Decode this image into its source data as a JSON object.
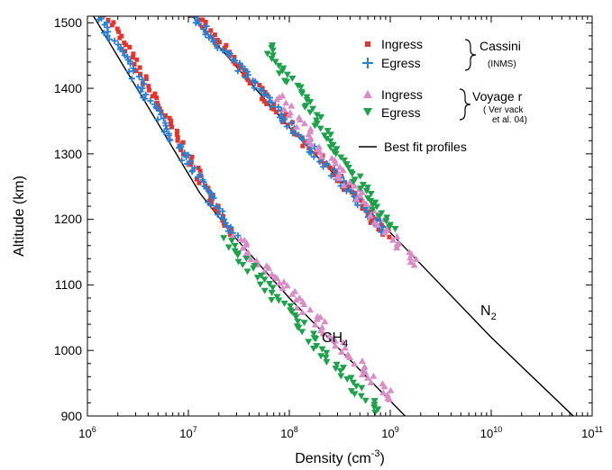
{
  "chart_data": {
    "type": "scatter",
    "xlabel": "Density (cm",
    "xlabel_exp": "-3",
    "xlabel_end": ")",
    "ylabel": "Altitude (km)",
    "xscale": "log",
    "xlim": [
      1000000,
      100000000000
    ],
    "ylim": [
      900,
      1510
    ],
    "x_tick_labels": [
      {
        "value": 1000000,
        "base": "10",
        "exp": "6"
      },
      {
        "value": 10000000,
        "base": "10",
        "exp": "7"
      },
      {
        "value": 100000000,
        "base": "10",
        "exp": "8"
      },
      {
        "value": 1000000000,
        "base": "10",
        "exp": "9"
      },
      {
        "value": 10000000000,
        "base": "10",
        "exp": "10"
      },
      {
        "value": 100000000000,
        "base": "10",
        "exp": "11"
      }
    ],
    "y_ticks": [
      900,
      1000,
      1100,
      1200,
      1300,
      1400,
      1500
    ],
    "grid": false,
    "legend_position": "top-right",
    "legend": {
      "cassini_ingress": "Ingress",
      "cassini_egress": "Egress",
      "cassini_group": "Cassini",
      "cassini_sub": "(INMS)",
      "voyager_ingress": "Ingress",
      "voyager_egress": "Egress",
      "voyager_group": "Voyage r",
      "voyager_sub1": "( Ver vack",
      "voyager_sub2": "et al. 04)",
      "fit": "Best fit profiles"
    },
    "annotations": {
      "ch4_base": "CH",
      "ch4_sub": "4",
      "n2_base": "N",
      "n2_sub": "2"
    },
    "fit_lines": [
      {
        "species": "CH4",
        "color": "#000000",
        "x": [
          1150000,
          13000000,
          28000000,
          100000000,
          1400000000
        ],
        "y": [
          1510,
          1240,
          1175,
          1080,
          900
        ]
      },
      {
        "species": "N2",
        "color": "#000000",
        "x": [
          11000000,
          100000000,
          1000000000,
          10000000000,
          65000000000
        ],
        "y": [
          1510,
          1340,
          1180,
          1020,
          900
        ]
      }
    ],
    "series": [
      {
        "name": "Ingress",
        "group": "Cassini",
        "color": "#e8332a",
        "marker": "square",
        "profiles": [
          {
            "species": "CH4",
            "x": [
              1600000,
              28000000
            ],
            "y": [
              1510,
              1175
            ],
            "n": 70,
            "jitter": 0.04
          },
          {
            "species": "N2",
            "x": [
              11500000,
              950000000
            ],
            "y": [
              1510,
              1175
            ],
            "n": 95,
            "jitter": 0.05
          }
        ]
      },
      {
        "name": "Egress",
        "group": "Cassini",
        "color": "#2a7fcf",
        "marker": "plus",
        "profiles": [
          {
            "species": "CH4",
            "x": [
              1250000,
              28000000
            ],
            "y": [
              1512,
              1175
            ],
            "n": 85,
            "jitter": 0.05
          },
          {
            "species": "N2",
            "x": [
              11000000,
              900000000
            ],
            "y": [
              1512,
              1180
            ],
            "n": 95,
            "jitter": 0.05
          }
        ]
      },
      {
        "name": "Ingress",
        "group": "Voyager",
        "color": "#d98cc8",
        "marker": "triangle-up",
        "profiles": [
          {
            "species": "CH4",
            "x": [
              28000000,
              1100000000
            ],
            "y": [
              1175,
              925
            ],
            "n": 65,
            "jitter": 0.07
          },
          {
            "species": "N2",
            "x": [
              75000000,
              1800000000
            ],
            "y": [
              1390,
              1130
            ],
            "n": 60,
            "jitter": 0.06
          }
        ]
      },
      {
        "name": "Egress",
        "group": "Voyager",
        "color": "#1ca24b",
        "marker": "triangle-down",
        "profiles": [
          {
            "species": "CH4",
            "x": [
              23000000,
              750000000
            ],
            "y": [
              1170,
              905
            ],
            "n": 65,
            "jitter": 0.07
          },
          {
            "species": "N2",
            "x": [
              60000000,
              1000000000
            ],
            "y": [
              1465,
              1185
            ],
            "n": 70,
            "jitter": 0.06
          }
        ]
      }
    ]
  }
}
